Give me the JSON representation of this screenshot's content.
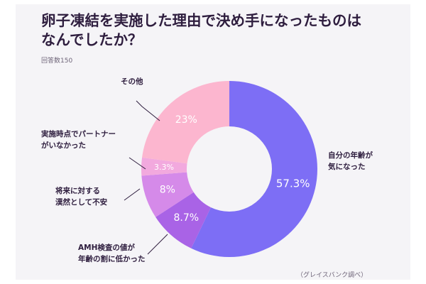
{
  "chart_data": {
    "type": "pie",
    "title": "卵子凍結を実施した理由で決め手になったものは\nなんでしたか？",
    "subtitle": "回答数150",
    "source": "（グレイスバンク調べ）",
    "slices": [
      {
        "label": "自分の年齢が\n気になった",
        "value": 57.3,
        "value_label": "57.3%",
        "color": "#7d6ef5"
      },
      {
        "label": "AMH検査の値が\n年齢の割に低かった",
        "value": 8.7,
        "value_label": "8.7%",
        "color": "#a963e6"
      },
      {
        "label": "将来に対する\n漠然として不安",
        "value": 8,
        "value_label": "8%",
        "color": "#d58ae9"
      },
      {
        "label": "実施時点でパートナー\nがいなかった",
        "value": 3.3,
        "value_label": "3.3%",
        "color": "#f2a9de"
      },
      {
        "label": "その他",
        "value": 23,
        "value_label": "23%",
        "color": "#fcb6cf"
      }
    ]
  }
}
